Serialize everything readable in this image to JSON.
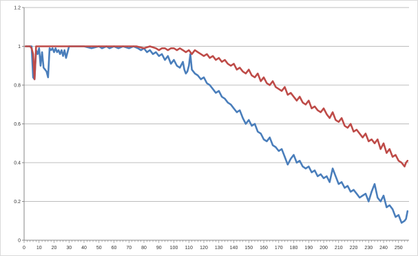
{
  "chart_data": {
    "type": "line",
    "title": "",
    "xlabel": "",
    "ylabel": "",
    "xlim": [
      0,
      257
    ],
    "ylim": [
      0,
      1.2
    ],
    "y_ticks": [
      "0",
      "0.2",
      "0.4",
      "0.6",
      "0.8",
      "1",
      "1.2"
    ],
    "y_tick_values": [
      0,
      0.2,
      0.4,
      0.6,
      0.8,
      1.0,
      1.2
    ],
    "x_ticks": [
      "0",
      "10",
      "20",
      "30",
      "40",
      "50",
      "60",
      "70",
      "80",
      "90",
      "100",
      "110",
      "120",
      "130",
      "140",
      "150",
      "160",
      "170",
      "180",
      "190",
      "200",
      "210",
      "220",
      "230",
      "240",
      "250"
    ],
    "x_tick_values": [
      0,
      10,
      20,
      30,
      40,
      50,
      60,
      70,
      80,
      90,
      100,
      110,
      120,
      130,
      140,
      150,
      160,
      170,
      180,
      190,
      200,
      210,
      220,
      230,
      240,
      250
    ],
    "grid": "horizontal",
    "legend": "none",
    "colors": {
      "blue": "#4a7ebb",
      "red": "#be4b48",
      "grid": "#a6a6a6",
      "axis": "#868686"
    },
    "series": [
      {
        "color": "#4a7ebb",
        "points": [
          [
            1,
            1.0
          ],
          [
            5,
            1.0
          ],
          [
            6,
            0.84
          ],
          [
            7,
            0.83
          ],
          [
            8,
            0.98
          ],
          [
            9,
            0.96
          ],
          [
            10,
            0.99
          ],
          [
            11,
            0.9
          ],
          [
            12,
            0.97
          ],
          [
            13,
            0.89
          ],
          [
            14,
            0.88
          ],
          [
            15,
            0.87
          ],
          [
            16,
            0.84
          ],
          [
            17,
            0.99
          ],
          [
            18,
            0.98
          ],
          [
            19,
            0.99
          ],
          [
            20,
            0.97
          ],
          [
            21,
            0.99
          ],
          [
            22,
            0.97
          ],
          [
            23,
            0.98
          ],
          [
            24,
            0.96
          ],
          [
            25,
            0.98
          ],
          [
            26,
            0.95
          ],
          [
            27,
            0.98
          ],
          [
            28,
            0.94
          ],
          [
            29,
            0.97
          ],
          [
            30,
            1.0
          ],
          [
            40,
            1.0
          ],
          [
            45,
            0.99
          ],
          [
            50,
            1.0
          ],
          [
            52,
            0.99
          ],
          [
            55,
            1.0
          ],
          [
            57,
            0.99
          ],
          [
            60,
            1.0
          ],
          [
            63,
            0.99
          ],
          [
            66,
            1.0
          ],
          [
            70,
            0.99
          ],
          [
            73,
            1.0
          ],
          [
            76,
            0.99
          ],
          [
            78,
            0.98
          ],
          [
            80,
            0.99
          ],
          [
            82,
            0.97
          ],
          [
            84,
            0.98
          ],
          [
            86,
            0.96
          ],
          [
            88,
            0.97
          ],
          [
            90,
            0.95
          ],
          [
            92,
            0.96
          ],
          [
            94,
            0.93
          ],
          [
            96,
            0.95
          ],
          [
            98,
            0.91
          ],
          [
            100,
            0.93
          ],
          [
            102,
            0.9
          ],
          [
            104,
            0.89
          ],
          [
            106,
            0.92
          ],
          [
            107,
            0.88
          ],
          [
            108,
            0.86
          ],
          [
            109,
            0.87
          ],
          [
            110,
            0.9
          ],
          [
            111,
            0.96
          ],
          [
            112,
            0.88
          ],
          [
            114,
            0.86
          ],
          [
            116,
            0.85
          ],
          [
            118,
            0.83
          ],
          [
            120,
            0.84
          ],
          [
            122,
            0.81
          ],
          [
            124,
            0.8
          ],
          [
            126,
            0.78
          ],
          [
            128,
            0.76
          ],
          [
            130,
            0.77
          ],
          [
            132,
            0.74
          ],
          [
            134,
            0.73
          ],
          [
            136,
            0.71
          ],
          [
            138,
            0.7
          ],
          [
            140,
            0.68
          ],
          [
            142,
            0.66
          ],
          [
            144,
            0.67
          ],
          [
            146,
            0.63
          ],
          [
            148,
            0.6
          ],
          [
            150,
            0.62
          ],
          [
            152,
            0.59
          ],
          [
            154,
            0.6
          ],
          [
            156,
            0.56
          ],
          [
            158,
            0.55
          ],
          [
            160,
            0.52
          ],
          [
            162,
            0.51
          ],
          [
            164,
            0.53
          ],
          [
            166,
            0.49
          ],
          [
            168,
            0.48
          ],
          [
            170,
            0.46
          ],
          [
            172,
            0.47
          ],
          [
            174,
            0.43
          ],
          [
            176,
            0.39
          ],
          [
            178,
            0.42
          ],
          [
            180,
            0.44
          ],
          [
            182,
            0.4
          ],
          [
            184,
            0.41
          ],
          [
            186,
            0.38
          ],
          [
            188,
            0.37
          ],
          [
            190,
            0.38
          ],
          [
            192,
            0.35
          ],
          [
            194,
            0.36
          ],
          [
            196,
            0.33
          ],
          [
            198,
            0.34
          ],
          [
            200,
            0.32
          ],
          [
            202,
            0.33
          ],
          [
            204,
            0.3
          ],
          [
            206,
            0.37
          ],
          [
            208,
            0.33
          ],
          [
            210,
            0.29
          ],
          [
            212,
            0.3
          ],
          [
            214,
            0.27
          ],
          [
            216,
            0.28
          ],
          [
            218,
            0.25
          ],
          [
            220,
            0.26
          ],
          [
            222,
            0.24
          ],
          [
            224,
            0.22
          ],
          [
            226,
            0.23
          ],
          [
            228,
            0.24
          ],
          [
            230,
            0.2
          ],
          [
            232,
            0.25
          ],
          [
            234,
            0.29
          ],
          [
            236,
            0.22
          ],
          [
            238,
            0.2
          ],
          [
            240,
            0.23
          ],
          [
            242,
            0.17
          ],
          [
            244,
            0.18
          ],
          [
            246,
            0.16
          ],
          [
            248,
            0.12
          ],
          [
            250,
            0.13
          ],
          [
            252,
            0.09
          ],
          [
            254,
            0.1
          ],
          [
            255,
            0.11
          ],
          [
            256,
            0.15
          ]
        ]
      },
      {
        "color": "#be4b48",
        "points": [
          [
            1,
            1.0
          ],
          [
            4,
            1.0
          ],
          [
            5,
            0.99
          ],
          [
            6,
            0.96
          ],
          [
            7,
            0.83
          ],
          [
            8,
            1.0
          ],
          [
            20,
            1.0
          ],
          [
            40,
            1.0
          ],
          [
            60,
            1.0
          ],
          [
            75,
            1.0
          ],
          [
            80,
            0.99
          ],
          [
            84,
            1.0
          ],
          [
            88,
            0.99
          ],
          [
            90,
            0.98
          ],
          [
            92,
            0.99
          ],
          [
            94,
            0.99
          ],
          [
            96,
            0.98
          ],
          [
            98,
            0.99
          ],
          [
            100,
            0.99
          ],
          [
            102,
            0.98
          ],
          [
            104,
            0.99
          ],
          [
            106,
            0.98
          ],
          [
            108,
            0.97
          ],
          [
            110,
            0.98
          ],
          [
            112,
            0.96
          ],
          [
            114,
            0.98
          ],
          [
            116,
            0.97
          ],
          [
            118,
            0.96
          ],
          [
            120,
            0.95
          ],
          [
            122,
            0.96
          ],
          [
            124,
            0.94
          ],
          [
            126,
            0.95
          ],
          [
            128,
            0.93
          ],
          [
            130,
            0.94
          ],
          [
            132,
            0.92
          ],
          [
            134,
            0.93
          ],
          [
            136,
            0.91
          ],
          [
            138,
            0.9
          ],
          [
            140,
            0.91
          ],
          [
            142,
            0.88
          ],
          [
            144,
            0.89
          ],
          [
            146,
            0.87
          ],
          [
            148,
            0.86
          ],
          [
            150,
            0.88
          ],
          [
            152,
            0.85
          ],
          [
            154,
            0.84
          ],
          [
            156,
            0.86
          ],
          [
            158,
            0.82
          ],
          [
            160,
            0.84
          ],
          [
            162,
            0.81
          ],
          [
            164,
            0.8
          ],
          [
            166,
            0.82
          ],
          [
            168,
            0.79
          ],
          [
            170,
            0.78
          ],
          [
            172,
            0.77
          ],
          [
            174,
            0.79
          ],
          [
            176,
            0.75
          ],
          [
            178,
            0.76
          ],
          [
            180,
            0.74
          ],
          [
            182,
            0.72
          ],
          [
            184,
            0.74
          ],
          [
            186,
            0.71
          ],
          [
            188,
            0.7
          ],
          [
            190,
            0.72
          ],
          [
            192,
            0.68
          ],
          [
            194,
            0.69
          ],
          [
            196,
            0.67
          ],
          [
            198,
            0.66
          ],
          [
            200,
            0.68
          ],
          [
            202,
            0.65
          ],
          [
            204,
            0.63
          ],
          [
            206,
            0.66
          ],
          [
            208,
            0.62
          ],
          [
            210,
            0.61
          ],
          [
            212,
            0.63
          ],
          [
            214,
            0.59
          ],
          [
            216,
            0.58
          ],
          [
            218,
            0.6
          ],
          [
            220,
            0.56
          ],
          [
            222,
            0.57
          ],
          [
            224,
            0.55
          ],
          [
            226,
            0.53
          ],
          [
            228,
            0.55
          ],
          [
            230,
            0.51
          ],
          [
            232,
            0.52
          ],
          [
            234,
            0.5
          ],
          [
            236,
            0.52
          ],
          [
            238,
            0.47
          ],
          [
            240,
            0.5
          ],
          [
            242,
            0.45
          ],
          [
            244,
            0.47
          ],
          [
            246,
            0.43
          ],
          [
            248,
            0.44
          ],
          [
            250,
            0.41
          ],
          [
            252,
            0.4
          ],
          [
            254,
            0.38
          ],
          [
            255,
            0.4
          ],
          [
            256,
            0.41
          ]
        ]
      }
    ]
  }
}
